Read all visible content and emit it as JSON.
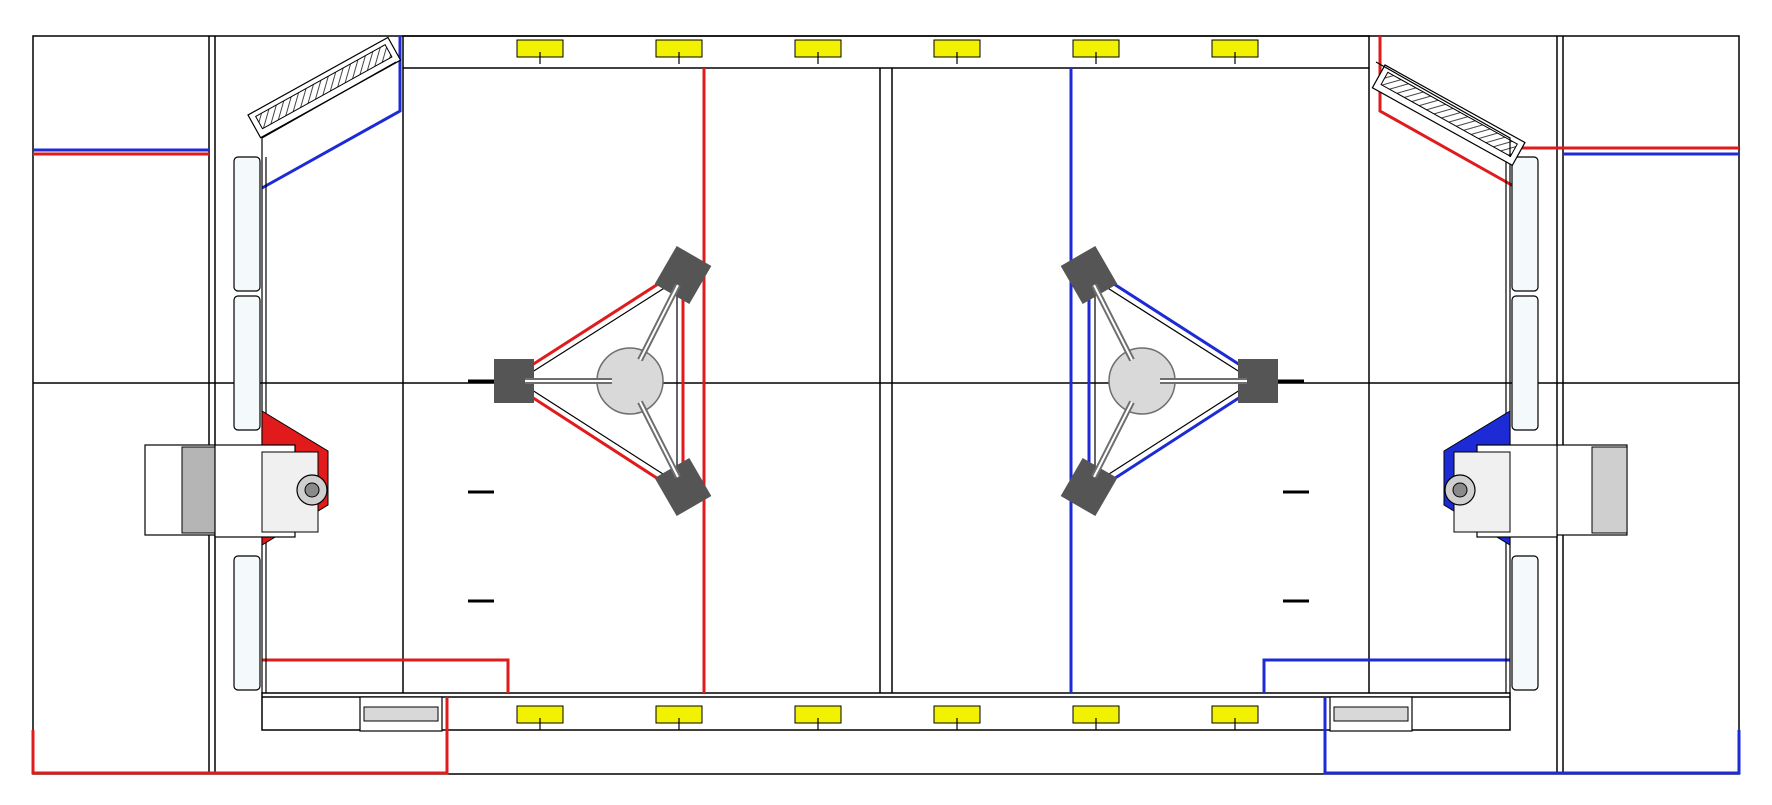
{
  "diagram": {
    "kind": "field-layout-top-view",
    "colors": {
      "red_alliance": "#e11b1b",
      "blue_alliance": "#1c2bd6",
      "line": "#000000",
      "marker_fill": "#f2f200",
      "tower_fill": "#555555",
      "panel_fill": "#f4f9fc",
      "truss": "#6e6e6e"
    },
    "sides": [
      {
        "alliance": "red",
        "tower": "red-tower",
        "station": "red-driver-station"
      },
      {
        "alliance": "blue",
        "tower": "blue-tower",
        "station": "blue-driver-station"
      }
    ],
    "top_marker_count": 6,
    "bottom_marker_count": 6
  }
}
